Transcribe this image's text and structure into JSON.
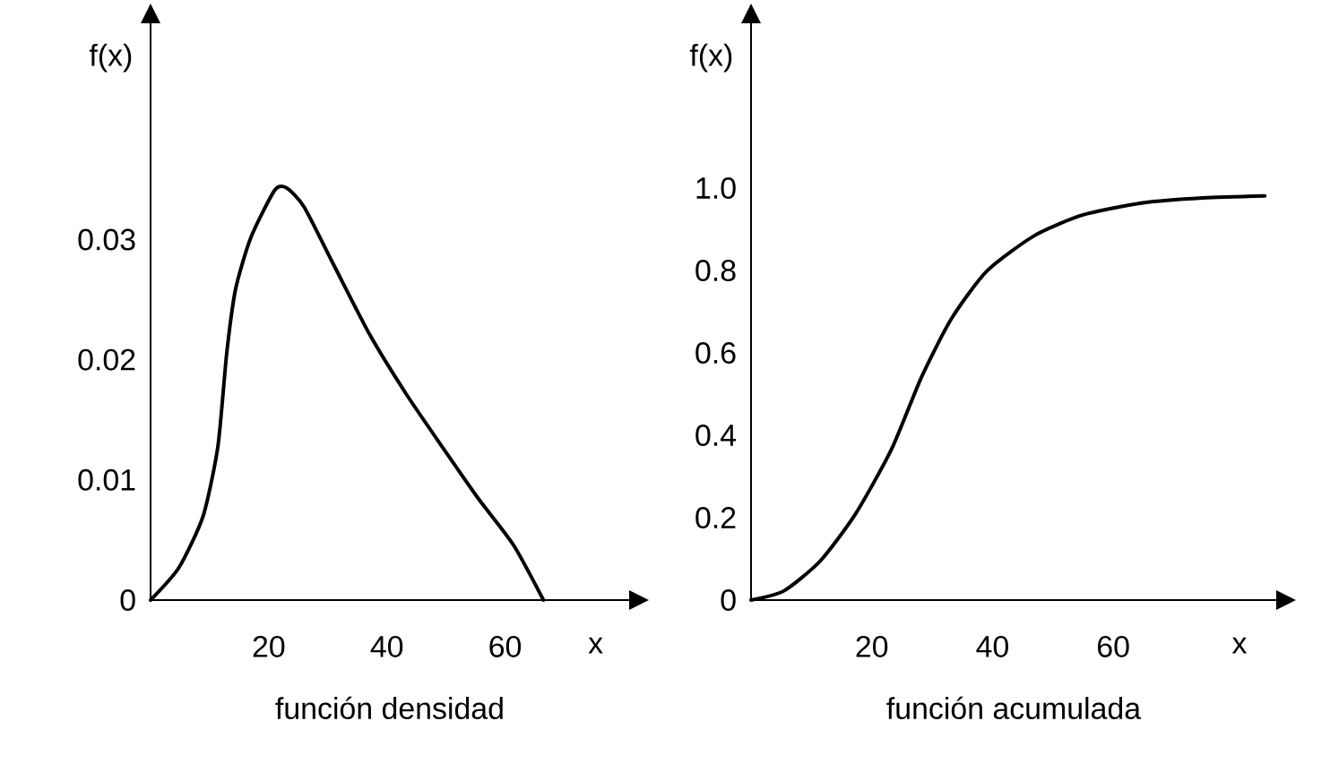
{
  "chart_data": [
    {
      "type": "line",
      "title": "función densidad",
      "xlabel": "x",
      "ylabel": "f(x)",
      "xlim": [
        0,
        81
      ],
      "ylim": [
        0,
        0.048
      ],
      "xticks": [
        20,
        40,
        60
      ],
      "yticks": [
        0,
        0.01,
        0.02,
        0.03
      ],
      "grid": false,
      "marker": "none",
      "line_style": "solid",
      "series": [
        {
          "color": "#000000",
          "x": [
            0,
            4.8,
            8.9,
            11.4,
            12.9,
            14.4,
            17,
            21,
            23,
            26,
            31.1,
            37.2,
            43.2,
            49.3,
            55.4,
            61.4,
            66.5
          ],
          "values": [
            0,
            0.0027,
            0.007,
            0.0128,
            0.0206,
            0.0259,
            0.0302,
            0.0341,
            0.0343,
            0.0327,
            0.0278,
            0.022,
            0.0172,
            0.0128,
            0.0085,
            0.0046,
            0
          ]
        }
      ]
    },
    {
      "type": "line",
      "title": "función acumulada",
      "xlabel": "x",
      "ylabel": "f(x)",
      "xlim": [
        0,
        87
      ],
      "ylim": [
        0,
        1.4
      ],
      "xticks": [
        20,
        40,
        60
      ],
      "yticks": [
        {
          "value": 0,
          "label": "0"
        },
        0.2,
        0.4,
        0.6,
        0.8,
        {
          "value": 1,
          "label": "1.0"
        }
      ],
      "grid": false,
      "marker": "none",
      "line_style": "solid",
      "series": [
        {
          "color": "#000000",
          "x": [
            0,
            5.4,
            11.4,
            17.3,
            23.3,
            28.2,
            33.2,
            39.1,
            47,
            55,
            64.9,
            74.8,
            85.1
          ],
          "values": [
            0,
            0.022,
            0.094,
            0.209,
            0.367,
            0.54,
            0.683,
            0.799,
            0.885,
            0.935,
            0.964,
            0.976,
            0.981
          ]
        }
      ]
    }
  ]
}
